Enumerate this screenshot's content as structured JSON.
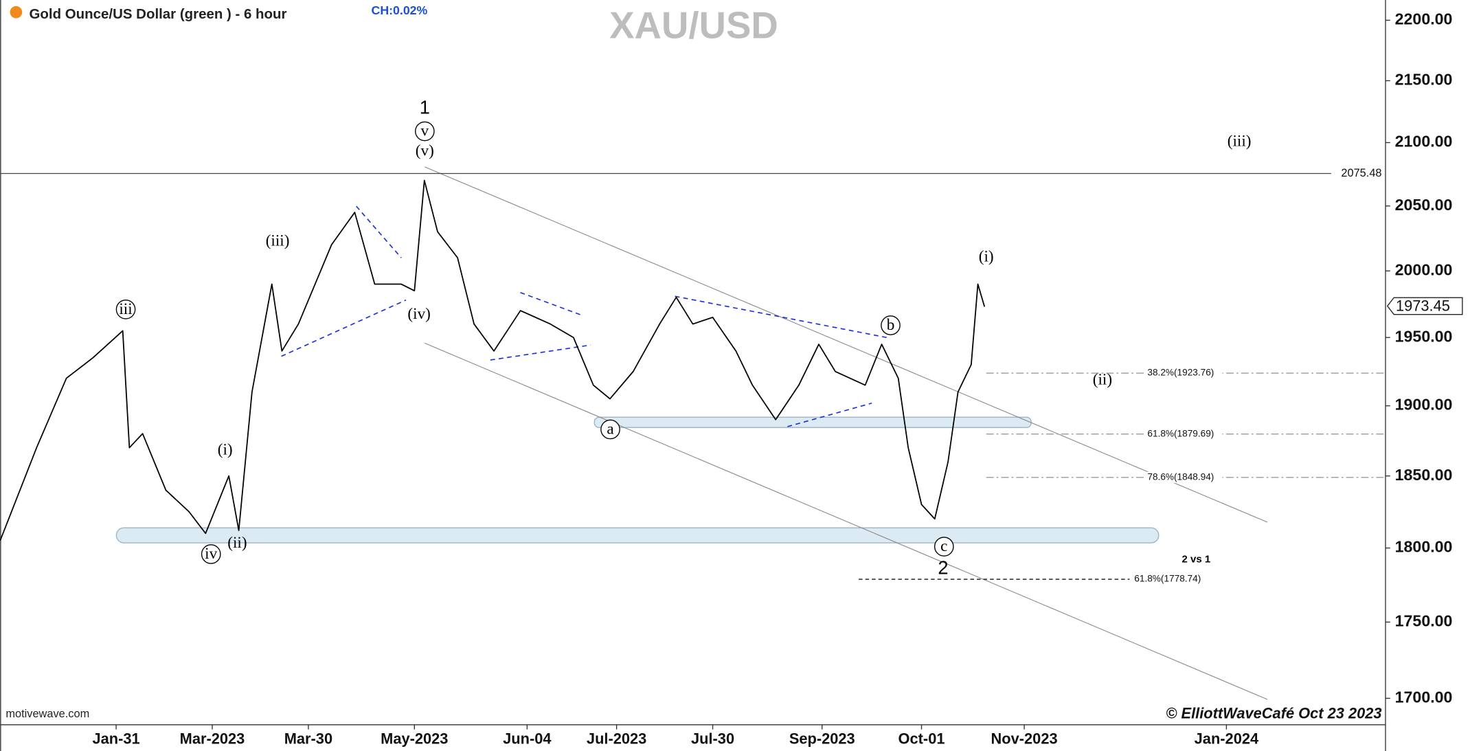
{
  "chart_data": {
    "type": "line",
    "title": "XAU/USD",
    "subtitle": "Gold Ounce/US Dollar (green ) - 6 hour",
    "change_label": "CH:0.02%",
    "watermark": "motivewave.com",
    "copyright": "© ElliottWaveCafé Oct 23 2023",
    "log_scale": true,
    "xlim": [
      "2022-12-27",
      "2024-02-18"
    ],
    "ylim": [
      1683,
      2217
    ],
    "xticks": [
      {
        "value": "2023-01-31",
        "label": "Jan-31"
      },
      {
        "value": "2023-03-01",
        "label": "Mar-2023"
      },
      {
        "value": "2023-03-30",
        "label": "Mar-30"
      },
      {
        "value": "2023-05-01",
        "label": "May-2023"
      },
      {
        "value": "2023-06-04",
        "label": "Jun-04"
      },
      {
        "value": "2023-07-01",
        "label": "Jul-2023"
      },
      {
        "value": "2023-07-30",
        "label": "Jul-30"
      },
      {
        "value": "2023-09-01",
        "label": "Sep-2023"
      },
      {
        "value": "2023-10-01",
        "label": "Oct-01"
      },
      {
        "value": "2023-11-01",
        "label": "Nov-2023"
      },
      {
        "value": "2024-01-01",
        "label": "Jan-2024"
      }
    ],
    "yticks": [
      {
        "value": 2200,
        "label": "2200.00"
      },
      {
        "value": 2150,
        "label": "2150.00"
      },
      {
        "value": 2100,
        "label": "2100.00"
      },
      {
        "value": 2050,
        "label": "2050.00"
      },
      {
        "value": 2000,
        "label": "2000.00"
      },
      {
        "value": 1950,
        "label": "1950.00"
      },
      {
        "value": 1900,
        "label": "1900.00"
      },
      {
        "value": 1850,
        "label": "1850.00"
      },
      {
        "value": 1800,
        "label": "1800.00"
      },
      {
        "value": 1750,
        "label": "1750.00"
      },
      {
        "value": 1700,
        "label": "1700.00"
      }
    ],
    "x": [
      "2022-12-27",
      "2023-01-07",
      "2023-01-16",
      "2023-01-24",
      "2023-02-02",
      "2023-02-04",
      "2023-02-08",
      "2023-02-15",
      "2023-02-22",
      "2023-02-27",
      "2023-03-06",
      "2023-03-09",
      "2023-03-13",
      "2023-03-19",
      "2023-03-22",
      "2023-03-27",
      "2023-04-06",
      "2023-04-13",
      "2023-04-19",
      "2023-04-27",
      "2023-05-01",
      "2023-05-04",
      "2023-05-08",
      "2023-05-14",
      "2023-05-19",
      "2023-05-25",
      "2023-06-02",
      "2023-06-11",
      "2023-06-18",
      "2023-06-24",
      "2023-06-29",
      "2023-07-06",
      "2023-07-14",
      "2023-07-19",
      "2023-07-24",
      "2023-07-30",
      "2023-08-06",
      "2023-08-11",
      "2023-08-18",
      "2023-08-25",
      "2023-08-31",
      "2023-09-05",
      "2023-09-14",
      "2023-09-19",
      "2023-09-24",
      "2023-09-27",
      "2023-10-01",
      "2023-10-05",
      "2023-10-09",
      "2023-10-12",
      "2023-10-16",
      "2023-10-18",
      "2023-10-20"
    ],
    "series": [
      {
        "color": "#000000",
        "values": [
          1805,
          1870,
          1920,
          1935,
          1955,
          1870,
          1880,
          1840,
          1825,
          1810,
          1850,
          1812,
          1910,
          1990,
          1940,
          1960,
          2020,
          2045,
          1990,
          1990,
          1985,
          2070,
          2030,
          2010,
          1960,
          1940,
          1970,
          1960,
          1950,
          1915,
          1905,
          1925,
          1960,
          1980,
          1960,
          1965,
          1940,
          1915,
          1890,
          1915,
          1945,
          1925,
          1915,
          1945,
          1920,
          1870,
          1830,
          1820,
          1860,
          1910,
          1930,
          1990,
          1973
        ]
      }
    ],
    "reference_line": 2075.48,
    "last_price": 1973.45,
    "fib_levels": [
      {
        "value": 1923.76,
        "label": "38.2%(1923.76)"
      },
      {
        "value": 1879.69,
        "label": "61.8%(1879.69)"
      },
      {
        "value": 1848.94,
        "label": "78.6%(1848.94)"
      }
    ],
    "fib_target": {
      "value": 1778.74,
      "label": "61.8%(1778.74)"
    },
    "annotations": [
      {
        "text": "1",
        "circled": false
      },
      {
        "text": "v",
        "circled": true
      },
      {
        "text": "(v)",
        "circled": false
      },
      {
        "text": "(iii)",
        "circled": false
      },
      {
        "text": "iii",
        "circled": true
      },
      {
        "text": "(i)",
        "circled": false
      },
      {
        "text": "(ii)",
        "circled": false
      },
      {
        "text": "iv",
        "circled": true
      },
      {
        "text": "(iv)",
        "circled": false
      },
      {
        "text": "a",
        "circled": true
      },
      {
        "text": "b",
        "circled": true
      },
      {
        "text": "c",
        "circled": true
      },
      {
        "text": "2",
        "circled": false
      },
      {
        "text": "(i)",
        "circled": false
      },
      {
        "text": "(ii)",
        "circled": false
      },
      {
        "text": "(iii)",
        "circled": false
      },
      {
        "text": "2 vs 1",
        "circled": false
      }
    ]
  }
}
